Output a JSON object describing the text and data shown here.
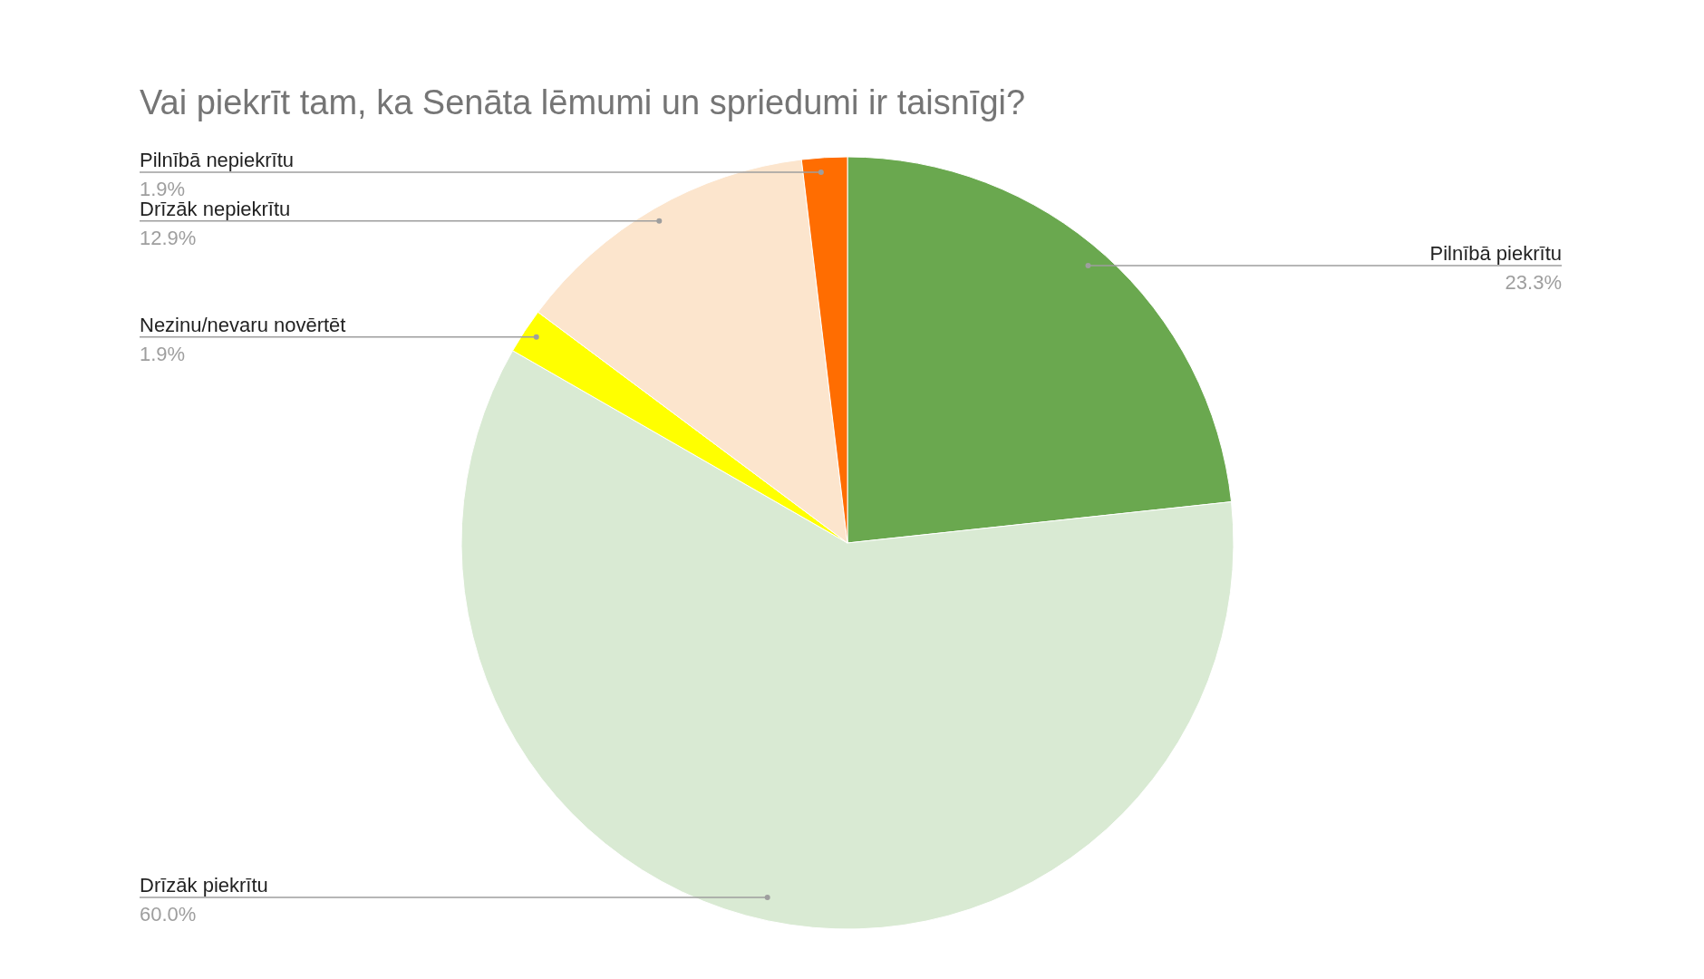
{
  "chart_data": {
    "type": "pie",
    "title": "Vai piekrīt tam, ka Senāta lēmumi un spriedumi ir taisnīgi?",
    "categories": [
      "Pilnībā piekrītu",
      "Drīzāk piekrītu",
      "Nezinu/nevaru novērtēt",
      "Drīzāk nepiekrītu",
      "Pilnībā nepiekrītu"
    ],
    "values": [
      23.3,
      60.0,
      1.9,
      12.9,
      1.9
    ],
    "value_labels": [
      "23.3%",
      "60.0%",
      "1.9%",
      "12.9%",
      "1.9%"
    ],
    "colors": [
      "#6aa84f",
      "#d9ead3",
      "#ffff00",
      "#fce5cd",
      "#ff6d01"
    ]
  }
}
